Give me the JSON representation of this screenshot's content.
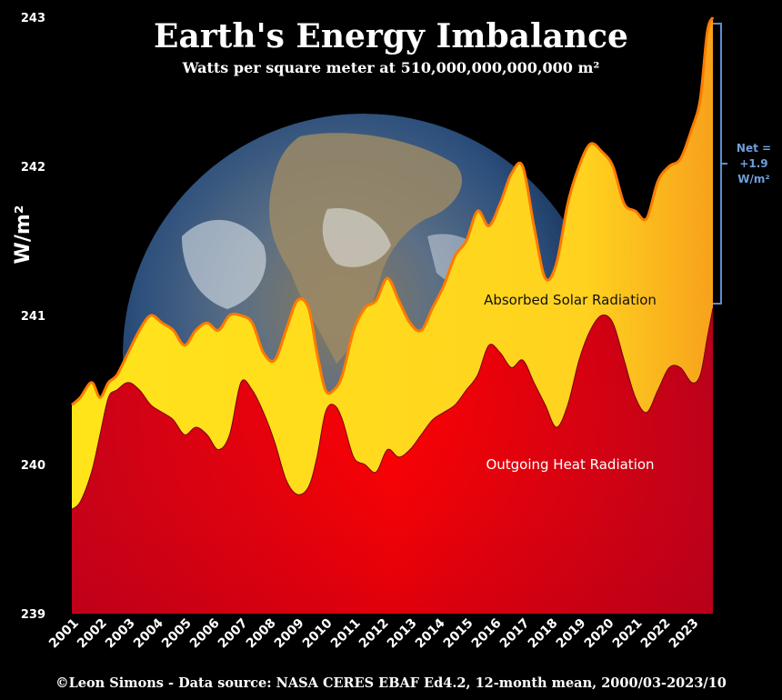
{
  "chart_data": {
    "type": "area",
    "title": "Earth's Energy Imbalance",
    "subtitle": "Watts per square meter at 510,000,000,000,000 m²",
    "ylabel": "W/m²",
    "ylim": [
      239,
      243
    ],
    "yticks": [
      "239",
      "240",
      "241",
      "242",
      "243"
    ],
    "xtick_labels": [
      "2001",
      "2002",
      "2003",
      "2004",
      "2005",
      "2006",
      "2007",
      "2008",
      "2009",
      "2010",
      "2011",
      "2012",
      "2013",
      "2014",
      "2015",
      "2016",
      "2017",
      "2018",
      "2019",
      "2020",
      "2021",
      "2022",
      "2023"
    ],
    "xlim": [
      2001.0,
      2023.75
    ],
    "series": [
      {
        "name": "Absorbed Solar Radiation",
        "color": "#ffd21f",
        "x": [
          2001.0,
          2001.3,
          2001.7,
          2002.0,
          2002.3,
          2002.6,
          2003.0,
          2003.4,
          2003.8,
          2004.2,
          2004.6,
          2005.0,
          2005.4,
          2005.8,
          2006.2,
          2006.6,
          2007.0,
          2007.4,
          2007.8,
          2008.2,
          2008.6,
          2009.0,
          2009.4,
          2009.7,
          2010.0,
          2010.3,
          2010.6,
          2011.0,
          2011.4,
          2011.8,
          2012.2,
          2012.6,
          2013.0,
          2013.4,
          2013.8,
          2014.2,
          2014.6,
          2015.0,
          2015.4,
          2015.8,
          2016.2,
          2016.6,
          2017.0,
          2017.4,
          2017.8,
          2018.2,
          2018.6,
          2019.0,
          2019.4,
          2019.8,
          2020.2,
          2020.6,
          2021.0,
          2021.4,
          2021.8,
          2022.2,
          2022.6,
          2023.0,
          2023.3,
          2023.55,
          2023.75
        ],
        "values": [
          240.4,
          240.45,
          240.55,
          240.45,
          240.55,
          240.6,
          240.75,
          240.9,
          241.0,
          240.95,
          240.9,
          240.8,
          240.9,
          240.95,
          240.9,
          241.0,
          241.0,
          240.95,
          240.75,
          240.7,
          240.9,
          241.1,
          241.05,
          240.75,
          240.5,
          240.5,
          240.6,
          240.9,
          241.05,
          241.1,
          241.25,
          241.1,
          240.95,
          240.9,
          241.05,
          241.2,
          241.4,
          241.5,
          241.7,
          241.6,
          241.75,
          241.95,
          242.0,
          241.6,
          241.25,
          241.35,
          241.75,
          242.0,
          242.15,
          242.1,
          242.0,
          241.75,
          241.7,
          241.65,
          241.9,
          242.0,
          242.05,
          242.25,
          242.45,
          242.9,
          243.0
        ]
      },
      {
        "name": "Outgoing Heat Radiation",
        "color": "#e8000a",
        "x": [
          2001.0,
          2001.3,
          2001.7,
          2002.0,
          2002.3,
          2002.6,
          2003.0,
          2003.4,
          2003.8,
          2004.2,
          2004.6,
          2005.0,
          2005.4,
          2005.8,
          2006.2,
          2006.6,
          2007.0,
          2007.4,
          2007.8,
          2008.2,
          2008.6,
          2009.0,
          2009.4,
          2009.7,
          2010.0,
          2010.3,
          2010.6,
          2011.0,
          2011.4,
          2011.8,
          2012.2,
          2012.6,
          2013.0,
          2013.4,
          2013.8,
          2014.2,
          2014.6,
          2015.0,
          2015.4,
          2015.8,
          2016.2,
          2016.6,
          2017.0,
          2017.4,
          2017.8,
          2018.2,
          2018.6,
          2019.0,
          2019.4,
          2019.8,
          2020.2,
          2020.6,
          2021.0,
          2021.4,
          2021.8,
          2022.2,
          2022.6,
          2023.0,
          2023.3,
          2023.55,
          2023.75
        ],
        "values": [
          239.7,
          239.75,
          239.95,
          240.2,
          240.45,
          240.5,
          240.55,
          240.5,
          240.4,
          240.35,
          240.3,
          240.2,
          240.25,
          240.2,
          240.1,
          240.2,
          240.55,
          240.5,
          240.35,
          240.15,
          239.9,
          239.8,
          239.85,
          240.05,
          240.35,
          240.4,
          240.3,
          240.05,
          240.0,
          239.95,
          240.1,
          240.05,
          240.1,
          240.2,
          240.3,
          240.35,
          240.4,
          240.5,
          240.6,
          240.8,
          240.75,
          240.65,
          240.7,
          240.55,
          240.4,
          240.25,
          240.4,
          240.7,
          240.9,
          241.0,
          240.95,
          240.7,
          240.45,
          240.35,
          240.5,
          240.65,
          240.65,
          240.55,
          240.6,
          240.85,
          241.05
        ]
      }
    ],
    "annotations": {
      "absorbed_label": "Absorbed Solar Radiation",
      "outgoing_label": "Outgoing Heat Radiation",
      "net_line1": "Net =",
      "net_line2": "+1.9",
      "net_line3": "W/m²"
    }
  },
  "footer": "©Leon Simons -  Data source: NASA CERES EBAF Ed4.2, 12-month mean, 2000/03-2023/10",
  "colors": {
    "background": "#000000",
    "absorbed": "#ffd21f",
    "outgoing": "#e8000a",
    "absorbed_edge": "#ff7a00",
    "net_bracket": "#5b8fd0"
  },
  "globe": {
    "description_icon": "earth-globe-icon"
  }
}
